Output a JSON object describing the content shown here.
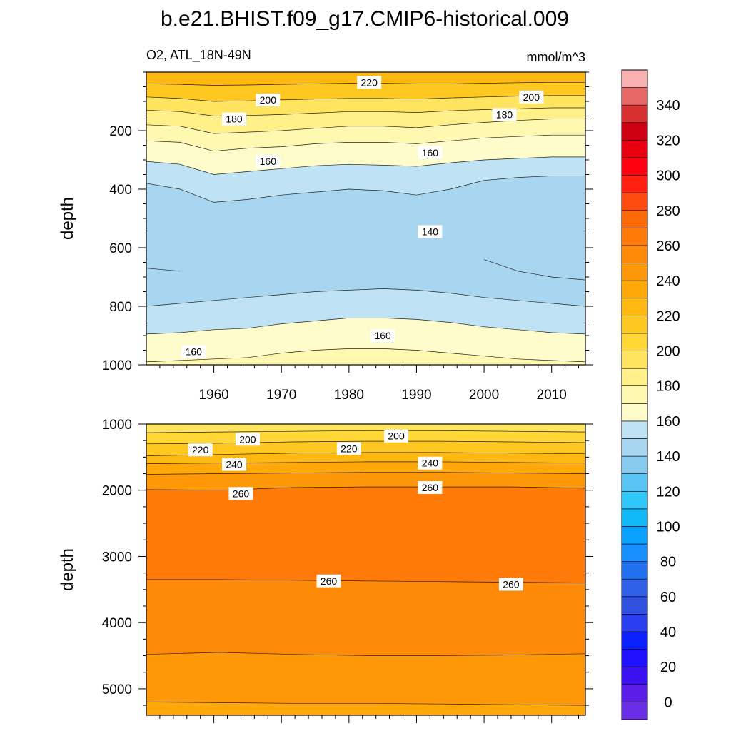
{
  "title": "b.e21.BHIST.f09_g17.CMIP6-historical.009",
  "subtitle_left": "O2, ATL_18N-49N",
  "subtitle_right": "mmol/m^3",
  "chart_data": [
    {
      "type": "heatmap",
      "panel": "upper",
      "xlim": [
        1950,
        2015
      ],
      "ylim": [
        0,
        1000
      ],
      "y_inverted": true,
      "ylabel": "depth",
      "x_ticks": [
        1960,
        1970,
        1980,
        1990,
        2000,
        2010
      ],
      "y_ticks": [
        200,
        400,
        600,
        800,
        1000
      ],
      "contour_labels": [
        {
          "text": "220",
          "x": 1983,
          "depth": 35
        },
        {
          "text": "200",
          "x": 1968,
          "depth": 95
        },
        {
          "text": "200",
          "x": 2007,
          "depth": 85
        },
        {
          "text": "180",
          "x": 1963,
          "depth": 160
        },
        {
          "text": "180",
          "x": 2003,
          "depth": 145
        },
        {
          "text": "160",
          "x": 1968,
          "depth": 305
        },
        {
          "text": "160",
          "x": 1992,
          "depth": 275
        },
        {
          "text": "140",
          "x": 1992,
          "depth": 545
        },
        {
          "text": "160",
          "x": 1985,
          "depth": 900
        },
        {
          "text": "160",
          "x": 1957,
          "depth": 955
        }
      ],
      "regions": [
        {
          "value": 225,
          "top": [
            0,
            0,
            0,
            0,
            0,
            0,
            0,
            0,
            0,
            0,
            0,
            0,
            0,
            0
          ],
          "bottom": [
            40,
            42,
            45,
            44,
            42,
            40,
            38,
            38,
            40,
            40,
            38,
            36,
            35,
            35
          ]
        },
        {
          "value": 215,
          "top": [
            40,
            42,
            45,
            44,
            42,
            40,
            38,
            38,
            40,
            40,
            38,
            36,
            35,
            35
          ],
          "bottom": [
            85,
            90,
            100,
            98,
            95,
            92,
            90,
            90,
            92,
            88,
            85,
            82,
            80,
            80
          ]
        },
        {
          "value": 195,
          "top": [
            85,
            90,
            100,
            98,
            95,
            92,
            90,
            90,
            92,
            88,
            85,
            82,
            80,
            80
          ],
          "bottom": [
            130,
            135,
            150,
            148,
            145,
            140,
            135,
            135,
            138,
            132,
            128,
            125,
            122,
            122
          ]
        },
        {
          "value": 185,
          "top": [
            130,
            135,
            150,
            148,
            145,
            140,
            135,
            135,
            138,
            132,
            128,
            125,
            122,
            122
          ],
          "bottom": [
            180,
            185,
            210,
            205,
            200,
            192,
            185,
            185,
            190,
            180,
            172,
            165,
            160,
            160
          ]
        },
        {
          "value": 175,
          "top": [
            180,
            185,
            210,
            205,
            200,
            192,
            185,
            185,
            190,
            180,
            172,
            165,
            160,
            160
          ],
          "bottom": [
            235,
            240,
            270,
            260,
            255,
            245,
            240,
            240,
            245,
            235,
            225,
            220,
            215,
            215
          ]
        },
        {
          "value": 165,
          "top": [
            235,
            240,
            270,
            260,
            255,
            245,
            240,
            240,
            245,
            235,
            225,
            220,
            215,
            215
          ],
          "bottom": [
            305,
            315,
            350,
            340,
            330,
            320,
            315,
            318,
            322,
            310,
            300,
            295,
            290,
            290
          ]
        },
        {
          "value": 155,
          "top": [
            305,
            315,
            350,
            340,
            330,
            320,
            315,
            318,
            322,
            310,
            300,
            295,
            290,
            290
          ],
          "bottom": [
            380,
            400,
            445,
            435,
            420,
            410,
            400,
            405,
            420,
            400,
            370,
            360,
            355,
            355
          ]
        },
        {
          "value": 145,
          "top": [
            380,
            400,
            445,
            435,
            420,
            410,
            400,
            405,
            420,
            400,
            370,
            360,
            355,
            355
          ],
          "bottom": [
            800,
            790,
            780,
            770,
            760,
            750,
            745,
            740,
            745,
            755,
            770,
            780,
            790,
            800
          ]
        },
        {
          "value": 140,
          "top": [
            490,
            480,
            9999,
            9999,
            9999,
            9999,
            9999,
            9999,
            9999,
            9999,
            500,
            440,
            430,
            430
          ],
          "bottom": [
            670,
            680,
            9999,
            9999,
            9999,
            9999,
            9999,
            9999,
            9999,
            9999,
            640,
            680,
            700,
            710
          ]
        },
        {
          "value": 155,
          "top": [
            800,
            790,
            780,
            770,
            760,
            750,
            745,
            740,
            745,
            755,
            770,
            780,
            790,
            800
          ],
          "bottom": [
            895,
            890,
            880,
            875,
            860,
            850,
            840,
            840,
            845,
            855,
            870,
            880,
            890,
            895
          ]
        },
        {
          "value": 165,
          "top": [
            895,
            890,
            880,
            875,
            860,
            850,
            840,
            840,
            845,
            855,
            870,
            880,
            890,
            895
          ],
          "bottom": [
            990,
            985,
            980,
            975,
            960,
            950,
            945,
            945,
            950,
            960,
            970,
            980,
            985,
            990
          ]
        },
        {
          "value": 175,
          "top": [
            990,
            985,
            980,
            975,
            960,
            950,
            945,
            945,
            950,
            960,
            970,
            980,
            985,
            990
          ],
          "bottom": [
            1000,
            1000,
            1000,
            1000,
            1000,
            1000,
            1000,
            1000,
            1000,
            1000,
            1000,
            1000,
            1000,
            1000
          ]
        }
      ]
    },
    {
      "type": "heatmap",
      "panel": "lower",
      "xlim": [
        1950,
        2015
      ],
      "ylim": [
        1000,
        5400
      ],
      "y_inverted": true,
      "ylabel": "depth",
      "y_ticks": [
        1000,
        2000,
        3000,
        4000,
        5000
      ],
      "contour_labels": [
        {
          "text": "200",
          "x": 1965,
          "depth": 1230
        },
        {
          "text": "200",
          "x": 1987,
          "depth": 1180
        },
        {
          "text": "220",
          "x": 1958,
          "depth": 1390
        },
        {
          "text": "220",
          "x": 1980,
          "depth": 1370
        },
        {
          "text": "240",
          "x": 1963,
          "depth": 1610
        },
        {
          "text": "240",
          "x": 1992,
          "depth": 1590
        },
        {
          "text": "260",
          "x": 1964,
          "depth": 2050
        },
        {
          "text": "260",
          "x": 1992,
          "depth": 1960
        },
        {
          "text": "260",
          "x": 1977,
          "depth": 3370
        },
        {
          "text": "260",
          "x": 2004,
          "depth": 3420
        }
      ],
      "regions": [
        {
          "value": 195,
          "top": [
            1000,
            1000,
            1000,
            1000,
            1000,
            1000,
            1000
          ],
          "bottom": [
            1130,
            1120,
            1110,
            1100,
            1100,
            1110,
            1120
          ]
        },
        {
          "value": 205,
          "top": [
            1130,
            1120,
            1110,
            1100,
            1100,
            1110,
            1120
          ],
          "bottom": [
            1300,
            1290,
            1270,
            1260,
            1260,
            1270,
            1280
          ]
        },
        {
          "value": 215,
          "top": [
            1300,
            1290,
            1270,
            1260,
            1260,
            1270,
            1280
          ],
          "bottom": [
            1480,
            1460,
            1440,
            1430,
            1430,
            1440,
            1450
          ]
        },
        {
          "value": 225,
          "top": [
            1480,
            1460,
            1440,
            1430,
            1430,
            1440,
            1450
          ],
          "bottom": [
            1600,
            1590,
            1580,
            1570,
            1570,
            1580,
            1590
          ]
        },
        {
          "value": 235,
          "top": [
            1600,
            1590,
            1580,
            1570,
            1570,
            1580,
            1590
          ],
          "bottom": [
            1760,
            1750,
            1740,
            1730,
            1730,
            1740,
            1750
          ]
        },
        {
          "value": 245,
          "top": [
            1760,
            1750,
            1740,
            1730,
            1730,
            1740,
            1750
          ],
          "bottom": [
            1990,
            2000,
            1960,
            1950,
            1950,
            1950,
            1970
          ]
        },
        {
          "value": 265,
          "top": [
            1990,
            2000,
            1960,
            1950,
            1950,
            1950,
            1970
          ],
          "bottom": [
            3350,
            3350,
            3360,
            3370,
            3380,
            3390,
            3400
          ]
        },
        {
          "value": 255,
          "top": [
            3350,
            3350,
            3360,
            3370,
            3380,
            3390,
            3400
          ],
          "bottom": [
            4480,
            4450,
            4480,
            4500,
            4500,
            4490,
            4470
          ]
        },
        {
          "value": 245,
          "top": [
            4480,
            4450,
            4480,
            4500,
            4500,
            4490,
            4470
          ],
          "bottom": [
            5200,
            5210,
            5220,
            5220,
            5230,
            5240,
            5250
          ]
        },
        {
          "value": 235,
          "top": [
            5200,
            5210,
            5220,
            5220,
            5230,
            5240,
            5250
          ],
          "bottom": [
            5400,
            5400,
            5400,
            5400,
            5400,
            5400,
            5400
          ]
        }
      ]
    }
  ],
  "colorbar": {
    "levels": [
      -10,
      0,
      10,
      20,
      30,
      40,
      50,
      60,
      70,
      80,
      90,
      100,
      110,
      120,
      130,
      140,
      150,
      160,
      170,
      180,
      190,
      200,
      210,
      220,
      230,
      240,
      250,
      260,
      270,
      280,
      290,
      300,
      310,
      320,
      330,
      340,
      350,
      360
    ],
    "labels": [
      "0",
      "20",
      "40",
      "60",
      "80",
      "100",
      "120",
      "140",
      "160",
      "180",
      "200",
      "220",
      "240",
      "260",
      "280",
      "300",
      "320",
      "340"
    ],
    "colors": [
      "#6a2ee8",
      "#5a1ee8",
      "#3a10f0",
      "#1f10ff",
      "#0a20ff",
      "#2a40f0",
      "#3050e0",
      "#3060e8",
      "#2070f0",
      "#1890ff",
      "#0aa0ff",
      "#10b8f8",
      "#30c8f8",
      "#5ac4f4",
      "#88caee",
      "#a8d6f0",
      "#bfe2f4",
      "#fffccc",
      "#fff8b0",
      "#fff08a",
      "#ffe460",
      "#ffd838",
      "#ffc820",
      "#ffb810",
      "#ffa808",
      "#ff9808",
      "#ff8a08",
      "#ff7a08",
      "#ff6a08",
      "#ff4a10",
      "#ff2010",
      "#ff0010",
      "#e80010",
      "#cc0010",
      "#d83030",
      "#e86868",
      "#f8b0b0"
    ]
  }
}
